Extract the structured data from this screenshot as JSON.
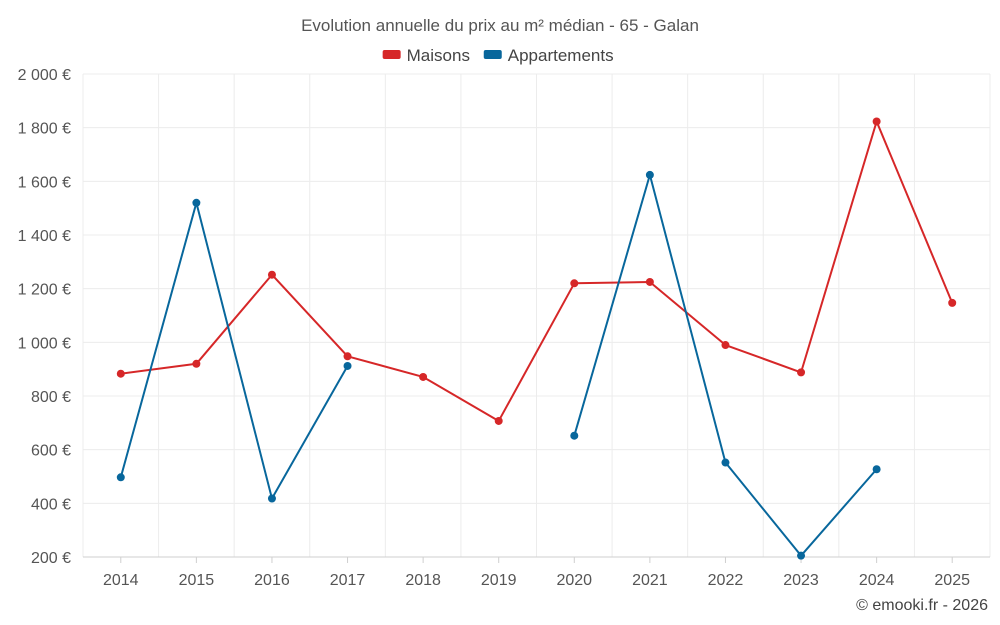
{
  "chart_data": {
    "type": "line",
    "title": "Evolution annuelle du prix au m² médian - 65 - Galan",
    "categories": [
      "2014",
      "2015",
      "2016",
      "2017",
      "2018",
      "2019",
      "2020",
      "2021",
      "2022",
      "2023",
      "2024",
      "2025"
    ],
    "series": [
      {
        "name": "Maisons",
        "color": "#d62728",
        "values": [
          883,
          920,
          1252,
          948,
          871,
          707,
          1220,
          1225,
          990,
          888,
          1823,
          1147
        ]
      },
      {
        "name": "Appartements",
        "color": "#08679c",
        "values": [
          497,
          1520,
          418,
          912,
          null,
          null,
          652,
          1624,
          552,
          205,
          527,
          null
        ]
      }
    ],
    "ylim": [
      200,
      2000
    ],
    "yticks": [
      200,
      400,
      600,
      800,
      1000,
      1200,
      1400,
      1600,
      1800,
      2000
    ],
    "ytick_labels": [
      "200 €",
      "400 €",
      "600 €",
      "800 €",
      "1 000 €",
      "1 200 €",
      "1 400 €",
      "1 600 €",
      "1 800 €",
      "2 000 €"
    ],
    "legend_position": "top-center",
    "grid": true,
    "xlabel": "",
    "ylabel": ""
  },
  "credit": "© emooki.fr - 2026"
}
